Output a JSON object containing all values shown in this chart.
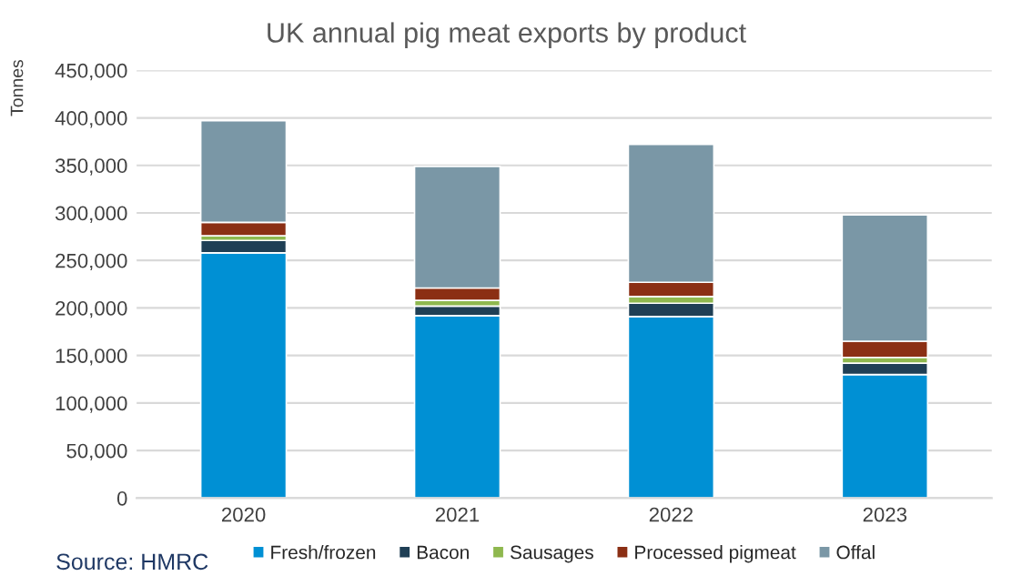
{
  "chart_data": {
    "type": "bar",
    "title": "UK annual pig meat exports by product",
    "ylabel": "Tonnes",
    "categories": [
      "2020",
      "2021",
      "2022",
      "2023"
    ],
    "stacked": true,
    "series": [
      {
        "name": "Fresh/frozen",
        "color": "#0090d4",
        "values": [
          258000,
          192000,
          191000,
          130000
        ]
      },
      {
        "name": "Bacon",
        "color": "#1f3f55",
        "values": [
          13000,
          10000,
          14000,
          12000
        ]
      },
      {
        "name": "Sausages",
        "color": "#8fb84f",
        "values": [
          5000,
          6000,
          7000,
          6000
        ]
      },
      {
        "name": "Processed pigmeat",
        "color": "#8b2f14",
        "values": [
          14000,
          13000,
          15000,
          17000
        ]
      },
      {
        "name": "Offal",
        "color": "#7a97a6",
        "values": [
          107000,
          128000,
          145000,
          133000
        ]
      }
    ],
    "ylim": [
      0,
      450000
    ],
    "yticks": [
      {
        "value": 0,
        "label": "0"
      },
      {
        "value": 50000,
        "label": "50,000"
      },
      {
        "value": 100000,
        "label": "100,000"
      },
      {
        "value": 150000,
        "label": "150,000"
      },
      {
        "value": 200000,
        "label": "200,000"
      },
      {
        "value": 250000,
        "label": "250,000"
      },
      {
        "value": 300000,
        "label": "300,000"
      },
      {
        "value": 350000,
        "label": "350,000"
      },
      {
        "value": 400000,
        "label": "400,000"
      },
      {
        "value": 450000,
        "label": "450,000"
      }
    ],
    "grid": "y",
    "legend": "bottom",
    "annotations": [
      "Source: HMRC"
    ]
  }
}
